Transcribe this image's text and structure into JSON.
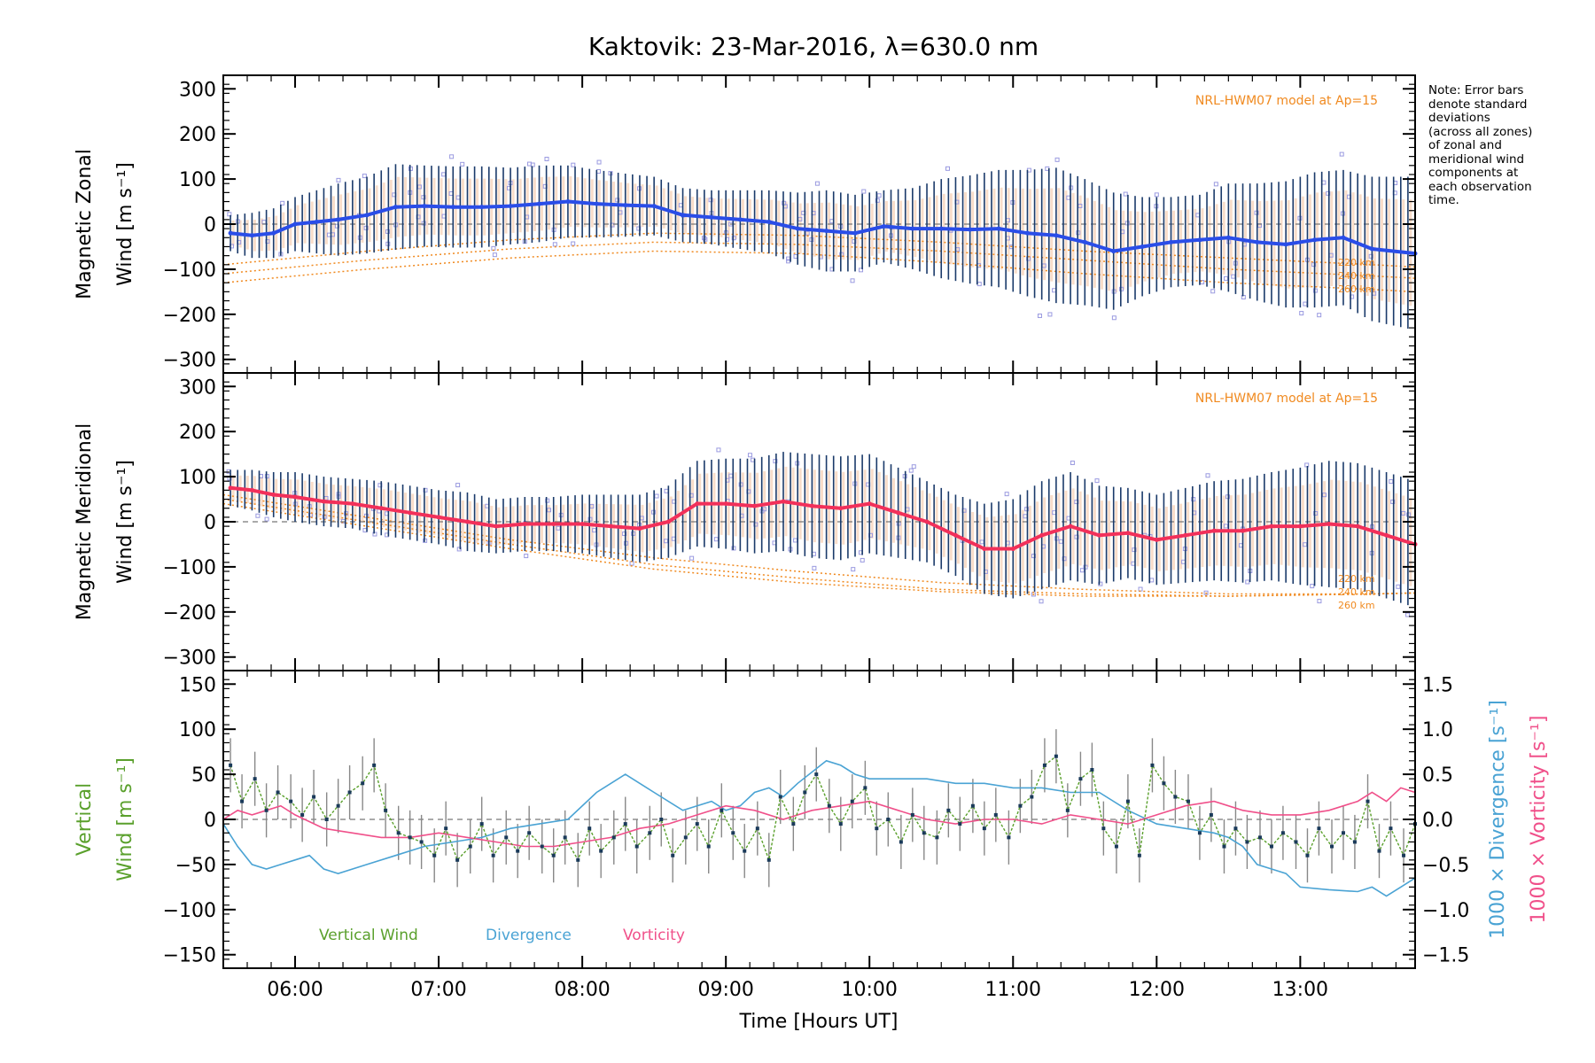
{
  "figure": {
    "title": "Kaktovik: 23-Mar-2016, λ=630.0 nm",
    "note_lines": [
      "Note: Error bars",
      "denote standard",
      "deviations",
      "(across all zones)",
      "of zonal and",
      "meridional wind",
      "components at",
      "each observation",
      "time."
    ],
    "xlabel": "Time [Hours UT]",
    "x_tick_labels": [
      "06:00",
      "07:00",
      "08:00",
      "09:00",
      "10:00",
      "11:00",
      "12:00",
      "13:00"
    ],
    "colors": {
      "zonal": "#2a4de8",
      "meridional": "#f2305a",
      "vertical": "#5aa02c",
      "divergence": "#4aa3d4",
      "vorticity": "#f0508a",
      "model": "#f08a20",
      "scatter": "#9a9ae0",
      "errorbar": "#1a3a6a"
    }
  },
  "chart_data": [
    {
      "type": "line",
      "panel": "zonal",
      "ylabel_lines": [
        "Magnetic Zonal",
        "Wind [m s⁻¹]"
      ],
      "annotation": "NRL-HWM07 model at Ap=15",
      "model_labels": [
        "220 km",
        "240 km",
        "260 km"
      ],
      "xlim": [
        5.5,
        13.8
      ],
      "ylim": [
        -330,
        330
      ],
      "y_ticks": [
        -300,
        -200,
        -100,
        0,
        100,
        200,
        300
      ],
      "series": [
        {
          "kind": "mean",
          "x": [
            5.55,
            5.7,
            5.85,
            6.0,
            6.15,
            6.3,
            6.5,
            6.7,
            6.9,
            7.1,
            7.3,
            7.5,
            7.7,
            7.9,
            8.1,
            8.3,
            8.5,
            8.7,
            8.9,
            9.1,
            9.3,
            9.5,
            9.7,
            9.9,
            10.1,
            10.3,
            10.5,
            10.7,
            10.9,
            11.1,
            11.3,
            11.5,
            11.7,
            11.9,
            12.1,
            12.3,
            12.5,
            12.7,
            12.9,
            13.1,
            13.3,
            13.5,
            13.8
          ],
          "y": [
            -20,
            -25,
            -20,
            0,
            5,
            10,
            20,
            38,
            40,
            38,
            38,
            40,
            45,
            50,
            45,
            42,
            40,
            20,
            15,
            10,
            5,
            -10,
            -15,
            -20,
            -5,
            -10,
            -10,
            -12,
            -10,
            -20,
            -25,
            -40,
            -60,
            -50,
            -40,
            -35,
            -30,
            -40,
            -45,
            -35,
            -30,
            -55,
            -65
          ],
          "err": [
            40,
            50,
            55,
            60,
            70,
            80,
            85,
            95,
            90,
            90,
            90,
            85,
            85,
            80,
            75,
            70,
            65,
            60,
            60,
            65,
            70,
            80,
            90,
            85,
            80,
            90,
            110,
            120,
            130,
            140,
            150,
            140,
            130,
            110,
            100,
            100,
            120,
            130,
            140,
            150,
            150,
            160,
            170
          ]
        },
        {
          "kind": "model",
          "name": "220 km",
          "x": [
            5.5,
            6.5,
            7.5,
            8.5,
            9.5,
            10.5,
            11.5,
            12.5,
            13.5,
            13.8
          ],
          "y": [
            -90,
            -60,
            -35,
            -20,
            -25,
            -40,
            -60,
            -75,
            -90,
            -95
          ]
        },
        {
          "kind": "model",
          "name": "240 km",
          "x": [
            5.5,
            6.5,
            7.5,
            8.5,
            9.5,
            10.5,
            11.5,
            12.5,
            13.5,
            13.8
          ],
          "y": [
            -110,
            -80,
            -55,
            -40,
            -45,
            -60,
            -80,
            -100,
            -115,
            -120
          ]
        },
        {
          "kind": "model",
          "name": "260 km",
          "x": [
            5.5,
            6.5,
            7.5,
            8.5,
            9.5,
            10.5,
            11.5,
            12.5,
            13.5,
            13.8
          ],
          "y": [
            -130,
            -100,
            -75,
            -60,
            -65,
            -85,
            -110,
            -130,
            -145,
            -150
          ]
        }
      ]
    },
    {
      "type": "line",
      "panel": "meridional",
      "ylabel_lines": [
        "Magnetic Meridional",
        "Wind [m s⁻¹]"
      ],
      "annotation": "NRL-HWM07 model at Ap=15",
      "model_labels": [
        "220 km",
        "240 km",
        "260 km"
      ],
      "xlim": [
        5.5,
        13.8
      ],
      "ylim": [
        -330,
        330
      ],
      "y_ticks": [
        -300,
        -200,
        -100,
        0,
        100,
        200,
        300
      ],
      "series": [
        {
          "kind": "mean",
          "x": [
            5.55,
            5.7,
            5.85,
            6.0,
            6.2,
            6.4,
            6.6,
            6.8,
            7.0,
            7.2,
            7.4,
            7.6,
            7.8,
            8.0,
            8.2,
            8.4,
            8.6,
            8.8,
            9.0,
            9.2,
            9.4,
            9.6,
            9.8,
            10.0,
            10.2,
            10.4,
            10.6,
            10.8,
            11.0,
            11.2,
            11.4,
            11.6,
            11.8,
            12.0,
            12.2,
            12.4,
            12.6,
            12.8,
            13.0,
            13.2,
            13.4,
            13.6,
            13.8
          ],
          "y": [
            75,
            70,
            60,
            55,
            45,
            40,
            30,
            20,
            10,
            0,
            -10,
            -5,
            -5,
            -5,
            -10,
            -15,
            0,
            40,
            40,
            35,
            45,
            35,
            30,
            40,
            20,
            0,
            -30,
            -60,
            -60,
            -30,
            -10,
            -30,
            -25,
            -40,
            -30,
            -20,
            -20,
            -10,
            -10,
            -5,
            -10,
            -30,
            -50
          ],
          "err": [
            40,
            45,
            50,
            55,
            55,
            55,
            60,
            60,
            60,
            65,
            60,
            60,
            60,
            65,
            70,
            75,
            80,
            95,
            100,
            105,
            110,
            115,
            115,
            110,
            100,
            90,
            90,
            100,
            110,
            120,
            120,
            110,
            100,
            100,
            105,
            110,
            115,
            120,
            130,
            140,
            140,
            140,
            140
          ]
        },
        {
          "kind": "model",
          "name": "220 km",
          "x": [
            5.5,
            6.5,
            7.5,
            8.5,
            9.5,
            10.5,
            11.5,
            12.5,
            13.5,
            13.8
          ],
          "y": [
            60,
            10,
            -40,
            -80,
            -110,
            -135,
            -150,
            -160,
            -160,
            -158
          ]
        },
        {
          "kind": "model",
          "name": "240 km",
          "x": [
            5.5,
            6.5,
            7.5,
            8.5,
            9.5,
            10.5,
            11.5,
            12.5,
            13.5,
            13.8
          ],
          "y": [
            50,
            0,
            -50,
            -95,
            -125,
            -150,
            -160,
            -165,
            -160,
            -158
          ]
        },
        {
          "kind": "model",
          "name": "260 km",
          "x": [
            5.5,
            6.5,
            7.5,
            8.5,
            9.5,
            10.5,
            11.5,
            12.5,
            13.5,
            13.8
          ],
          "y": [
            40,
            -10,
            -60,
            -105,
            -135,
            -155,
            -165,
            -165,
            -160,
            -158
          ]
        }
      ]
    },
    {
      "type": "line",
      "panel": "vertical",
      "ylabel_lines": [
        "Vertical",
        "Wind [m s⁻¹]"
      ],
      "y2label_lines": [
        "1000 × Divergence [s⁻¹]",
        "1000 × Vorticity [s⁻¹]"
      ],
      "xlim": [
        5.5,
        13.8
      ],
      "ylim": [
        -165,
        165
      ],
      "y_ticks": [
        -150,
        -100,
        -50,
        0,
        50,
        100,
        150
      ],
      "y2lim": [
        -1.65,
        1.65
      ],
      "y2_ticks": [
        -1.5,
        -1.0,
        -0.5,
        0.0,
        0.5,
        1.0,
        1.5
      ],
      "y2_tick_labels": [
        "−1.5",
        "−1.0",
        "−0.5",
        "0.0",
        "0.5",
        "1.0",
        "1.5"
      ],
      "legend": [
        "Vertical Wind",
        "Divergence",
        "Vorticity"
      ],
      "series": [
        {
          "kind": "vertical",
          "name": "Vertical Wind",
          "x": [
            5.55,
            5.63,
            5.72,
            5.8,
            5.88,
            5.97,
            6.05,
            6.13,
            6.22,
            6.3,
            6.38,
            6.47,
            6.55,
            6.63,
            6.72,
            6.8,
            6.88,
            6.97,
            7.05,
            7.13,
            7.22,
            7.3,
            7.38,
            7.47,
            7.55,
            7.63,
            7.72,
            7.8,
            7.88,
            7.97,
            8.05,
            8.13,
            8.22,
            8.3,
            8.38,
            8.47,
            8.55,
            8.63,
            8.72,
            8.8,
            8.88,
            8.97,
            9.05,
            9.13,
            9.22,
            9.3,
            9.38,
            9.47,
            9.55,
            9.63,
            9.72,
            9.8,
            9.88,
            9.97,
            10.05,
            10.13,
            10.22,
            10.3,
            10.38,
            10.47,
            10.55,
            10.63,
            10.72,
            10.8,
            10.88,
            10.97,
            11.05,
            11.13,
            11.22,
            11.3,
            11.38,
            11.47,
            11.55,
            11.63,
            11.72,
            11.8,
            11.88,
            11.97,
            12.05,
            12.13,
            12.22,
            12.3,
            12.38,
            12.47,
            12.55,
            12.63,
            12.72,
            12.8,
            12.88,
            12.97,
            13.05,
            13.13,
            13.22,
            13.3,
            13.38,
            13.47,
            13.55,
            13.63,
            13.72,
            13.8
          ],
          "y": [
            60,
            20,
            45,
            10,
            30,
            20,
            5,
            25,
            0,
            15,
            30,
            40,
            60,
            10,
            -15,
            -20,
            -25,
            -40,
            -10,
            -45,
            -30,
            -5,
            -40,
            -20,
            -35,
            -15,
            -30,
            -40,
            -20,
            -45,
            -10,
            -35,
            -20,
            -5,
            -30,
            -15,
            0,
            -40,
            -20,
            -5,
            -30,
            10,
            -15,
            -35,
            -10,
            -45,
            25,
            -5,
            30,
            50,
            15,
            -5,
            20,
            35,
            -10,
            0,
            -25,
            5,
            -15,
            -20,
            10,
            -5,
            15,
            -10,
            5,
            -20,
            15,
            25,
            60,
            70,
            10,
            45,
            55,
            -10,
            -30,
            20,
            -40,
            60,
            40,
            25,
            20,
            -15,
            5,
            -30,
            -10,
            -25,
            -20,
            -30,
            -15,
            -25,
            -40,
            -10,
            -30,
            -15,
            -25,
            20,
            -35,
            -10,
            -40,
            -5
          ],
          "err": [
            30,
            30,
            30,
            30,
            30,
            30,
            30,
            30,
            30,
            30,
            30,
            30,
            30,
            30,
            30,
            30,
            30,
            30,
            30,
            30,
            30,
            30,
            30,
            30,
            30,
            30,
            30,
            30,
            30,
            30,
            30,
            30,
            30,
            30,
            30,
            30,
            30,
            30,
            30,
            30,
            30,
            30,
            30,
            30,
            30,
            30,
            30,
            30,
            30,
            30,
            30,
            30,
            30,
            30,
            30,
            30,
            30,
            30,
            30,
            30,
            30,
            30,
            30,
            30,
            30,
            30,
            30,
            30,
            30,
            30,
            30,
            30,
            30,
            30,
            30,
            30,
            30,
            30,
            30,
            30,
            30,
            30,
            30,
            30,
            30,
            30,
            30,
            30,
            30,
            30,
            30,
            30,
            30,
            30,
            30,
            30,
            30,
            30,
            30,
            30
          ]
        },
        {
          "kind": "divergence",
          "name": "Divergence",
          "x": [
            5.5,
            5.6,
            5.7,
            5.8,
            5.9,
            6.0,
            6.1,
            6.2,
            6.3,
            6.5,
            6.7,
            6.9,
            7.1,
            7.3,
            7.5,
            7.7,
            7.9,
            8.1,
            8.3,
            8.5,
            8.7,
            8.9,
            9.0,
            9.1,
            9.2,
            9.3,
            9.4,
            9.5,
            9.7,
            9.8,
            9.9,
            10.0,
            10.2,
            10.4,
            10.6,
            10.8,
            11.0,
            11.2,
            11.4,
            11.6,
            11.8,
            12.0,
            12.2,
            12.4,
            12.5,
            12.6,
            12.7,
            12.8,
            12.9,
            13.0,
            13.2,
            13.4,
            13.5,
            13.6,
            13.7,
            13.8
          ],
          "y": [
            -0.05,
            -0.3,
            -0.5,
            -0.55,
            -0.5,
            -0.45,
            -0.4,
            -0.55,
            -0.6,
            -0.5,
            -0.4,
            -0.3,
            -0.25,
            -0.2,
            -0.1,
            -0.05,
            0.0,
            0.3,
            0.5,
            0.3,
            0.1,
            0.2,
            0.1,
            0.15,
            0.3,
            0.35,
            0.25,
            0.4,
            0.65,
            0.6,
            0.5,
            0.45,
            0.45,
            0.45,
            0.4,
            0.4,
            0.35,
            0.35,
            0.3,
            0.3,
            0.1,
            -0.05,
            -0.1,
            -0.15,
            -0.2,
            -0.3,
            -0.5,
            -0.55,
            -0.6,
            -0.75,
            -0.78,
            -0.8,
            -0.75,
            -0.85,
            -0.75,
            -0.65
          ]
        },
        {
          "kind": "vorticity",
          "name": "Vorticity",
          "x": [
            5.5,
            5.6,
            5.7,
            5.8,
            5.9,
            6.0,
            6.2,
            6.4,
            6.6,
            6.8,
            7.0,
            7.2,
            7.4,
            7.6,
            7.8,
            8.0,
            8.2,
            8.4,
            8.6,
            8.8,
            9.0,
            9.2,
            9.4,
            9.6,
            9.8,
            10.0,
            10.2,
            10.4,
            10.6,
            10.8,
            11.0,
            11.2,
            11.4,
            11.6,
            11.8,
            12.0,
            12.2,
            12.4,
            12.6,
            12.8,
            13.0,
            13.2,
            13.4,
            13.5,
            13.6,
            13.7,
            13.8
          ],
          "y": [
            0.0,
            0.1,
            0.05,
            0.1,
            0.15,
            0.05,
            -0.1,
            -0.15,
            -0.2,
            -0.2,
            -0.15,
            -0.2,
            -0.25,
            -0.3,
            -0.3,
            -0.25,
            -0.2,
            -0.1,
            -0.05,
            0.05,
            0.15,
            0.1,
            0.0,
            0.1,
            0.15,
            0.2,
            0.1,
            0.0,
            -0.05,
            0.0,
            0.0,
            -0.05,
            0.05,
            0.0,
            -0.05,
            0.05,
            0.15,
            0.2,
            0.1,
            0.05,
            0.05,
            0.1,
            0.2,
            0.3,
            0.2,
            0.35,
            0.3
          ]
        }
      ]
    }
  ]
}
